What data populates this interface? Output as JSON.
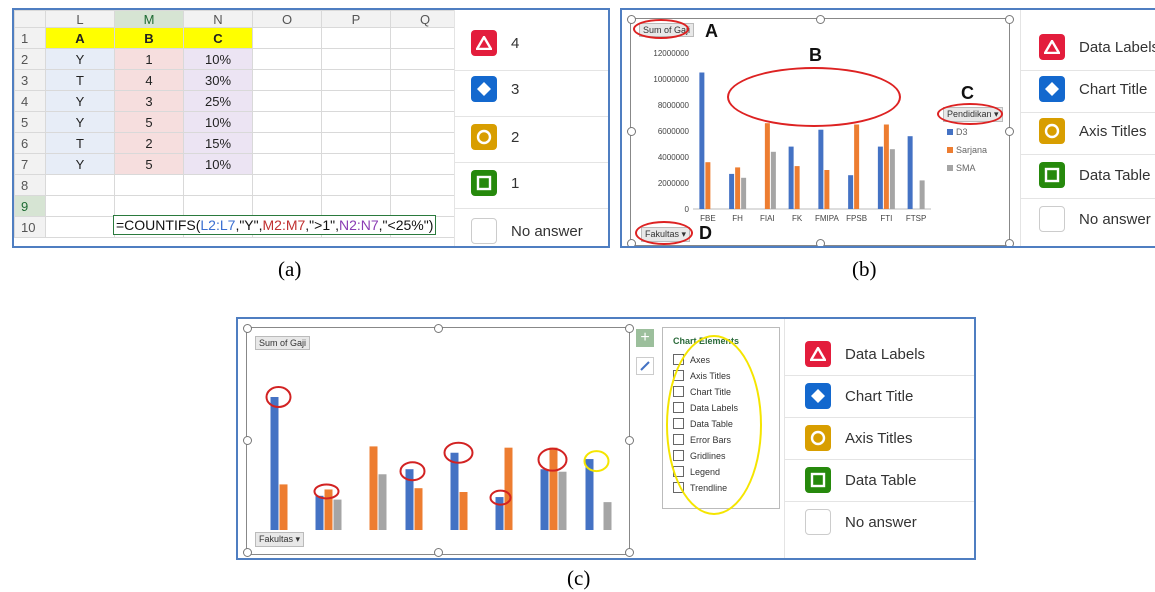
{
  "captions": {
    "a": "(a)",
    "b": "(b)",
    "c": "(c)"
  },
  "sheet": {
    "col_headers": [
      "L",
      "M",
      "N",
      "O",
      "P",
      "Q"
    ],
    "rows": [
      {
        "n": "1",
        "cells": [
          "A",
          "B",
          "C"
        ]
      },
      {
        "n": "2",
        "cells": [
          "Y",
          "1",
          "10%"
        ]
      },
      {
        "n": "3",
        "cells": [
          "T",
          "4",
          "30%"
        ]
      },
      {
        "n": "4",
        "cells": [
          "Y",
          "3",
          "25%"
        ]
      },
      {
        "n": "5",
        "cells": [
          "Y",
          "5",
          "10%"
        ]
      },
      {
        "n": "6",
        "cells": [
          "T",
          "2",
          "15%"
        ]
      },
      {
        "n": "7",
        "cells": [
          "Y",
          "5",
          "10%"
        ]
      },
      {
        "n": "8",
        "cells": [
          "",
          "",
          ""
        ]
      },
      {
        "n": "9",
        "cells": [
          "",
          "",
          ""
        ]
      },
      {
        "n": "10",
        "cells": [
          "",
          "",
          ""
        ]
      }
    ],
    "formula": {
      "p1": "=COUNTIFS(",
      "r1": "L2:L7",
      "p2": ",\"Y\",",
      "r2": "M2:M7",
      "p3": ",\">1\",",
      "r3": "N2:N7",
      "p4": ",\"<25%\")"
    }
  },
  "options_a": [
    {
      "icon": "triangle-icon",
      "label": "4",
      "color": "#e31d3c"
    },
    {
      "icon": "diamond-icon",
      "label": "3",
      "color": "#1368ce"
    },
    {
      "icon": "circle-icon",
      "label": "2",
      "color": "#d89e00"
    },
    {
      "icon": "square-icon",
      "label": "1",
      "color": "#26890c"
    },
    {
      "icon": "empty-box-icon",
      "label": "No answer"
    }
  ],
  "options_b": [
    {
      "icon": "triangle-icon",
      "label": "Data Labels"
    },
    {
      "icon": "diamond-icon",
      "label": "Chart Title"
    },
    {
      "icon": "circle-icon",
      "label": "Axis Titles"
    },
    {
      "icon": "square-icon",
      "label": "Data Table"
    },
    {
      "icon": "empty-box-icon",
      "label": "No answer"
    }
  ],
  "options_c": [
    {
      "icon": "triangle-icon",
      "label": "Data Labels"
    },
    {
      "icon": "diamond-icon",
      "label": "Chart Title"
    },
    {
      "icon": "circle-icon",
      "label": "Axis Titles"
    },
    {
      "icon": "square-icon",
      "label": "Data Table"
    },
    {
      "icon": "empty-box-icon",
      "label": "No answer"
    }
  ],
  "chart_b": {
    "value_field": "Sum of Gaji",
    "series_field": "Pendidikan",
    "axis_field": "Fakultas",
    "markers": [
      "A",
      "B",
      "C",
      "D"
    ]
  },
  "chart_c": {
    "value_field": "Sum of Gaji",
    "axis_field": "Fakultas",
    "elements_title": "Chart Elements",
    "elements": [
      "Axes",
      "Axis Titles",
      "Chart Title",
      "Data Labels",
      "Data Table",
      "Error Bars",
      "Gridlines",
      "Legend",
      "Trendline"
    ]
  },
  "chart_data": {
    "type": "bar",
    "categories": [
      "FBE",
      "FH",
      "FIAI",
      "FK",
      "FMIPA",
      "FPSB",
      "FTI",
      "FTSP"
    ],
    "series": [
      {
        "name": "D3",
        "color": "#4472c4",
        "values": [
          10500000,
          2700000,
          0,
          4800000,
          6100000,
          2600000,
          4800000,
          5600000
        ]
      },
      {
        "name": "Sarjana",
        "color": "#ed7d31",
        "values": [
          3600000,
          3200000,
          6600000,
          3300000,
          3000000,
          6500000,
          6500000,
          0
        ]
      },
      {
        "name": "SMA",
        "color": "#a5a5a5",
        "values": [
          0,
          2400000,
          4400000,
          0,
          0,
          0,
          4600000,
          2200000
        ]
      }
    ],
    "yticks": [
      "0",
      "2000000",
      "4000000",
      "6000000",
      "8000000",
      "10000000",
      "12000000"
    ],
    "ylim": [
      0,
      12000000
    ]
  },
  "colors": {
    "border": "#4f7ec1",
    "annotation": "#d22222",
    "highlight": "#f5e500"
  }
}
